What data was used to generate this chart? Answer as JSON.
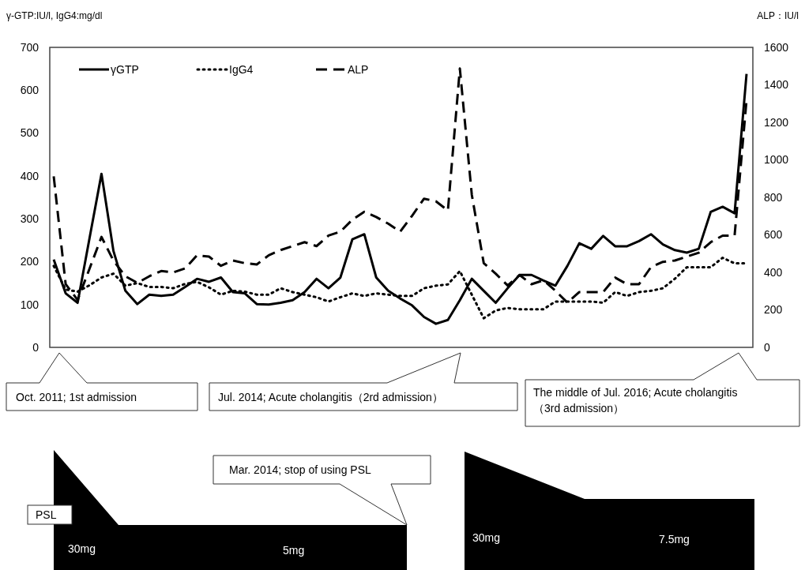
{
  "chart_data": {
    "type": "line",
    "ylabel": "γ-GTP:IU/l, IgG4:mg/dl",
    "y2label": "ALP：IU/l",
    "categories": [
      null,
      null,
      null,
      null,
      null,
      null,
      null,
      null,
      null,
      null,
      null,
      null,
      null,
      null,
      null,
      null,
      null,
      null,
      null,
      null,
      null,
      null,
      null,
      null,
      null,
      null,
      null,
      null,
      null,
      null,
      null,
      null,
      null,
      null,
      null,
      null,
      null,
      null,
      null,
      null,
      null,
      null,
      null,
      null,
      null,
      null,
      null,
      null,
      null,
      null,
      null,
      null,
      null,
      null,
      null,
      null,
      null,
      null,
      null
    ],
    "series": [
      {
        "name": "γGTP",
        "color": "#000000",
        "line_style": "solid",
        "values": [
          205,
          126,
          104,
          255,
          405,
          225,
          132,
          101,
          123,
          120,
          123,
          141,
          160,
          153,
          163,
          129,
          126,
          101,
          100,
          104,
          110,
          129,
          160,
          138,
          163,
          252,
          264,
          163,
          132,
          114,
          98,
          71,
          55,
          64,
          110,
          160,
          132,
          104,
          138,
          169,
          169,
          156,
          144,
          190,
          243,
          230,
          260,
          236,
          236,
          248,
          264,
          240,
          227,
          221,
          230,
          316,
          328,
          313,
          638
        ]
      },
      {
        "name": "IgG4",
        "color": "#000000",
        "line_style": "dotted",
        "values": [
          190,
          135,
          130,
          145,
          163,
          172,
          144,
          150,
          141,
          141,
          138,
          148,
          153,
          140,
          123,
          132,
          130,
          123,
          123,
          138,
          129,
          123,
          117,
          107,
          117,
          126,
          120,
          126,
          123,
          120,
          120,
          138,
          144,
          147,
          178,
          123,
          68,
          86,
          92,
          89,
          89,
          89,
          107,
          107,
          107,
          107,
          104,
          129,
          120,
          129,
          132,
          138,
          160,
          187,
          187,
          187,
          209,
          196,
          196
        ]
      },
      {
        "name": "ALP",
        "color": "#000000",
        "line_style": "dashed",
        "axis": "y2",
        "values": [
          912,
          337,
          253,
          420,
          589,
          463,
          379,
          344,
          379,
          407,
          400,
          421,
          491,
          484,
          435,
          463,
          449,
          442,
          491,
          519,
          540,
          561,
          540,
          596,
          617,
          681,
          723,
          695,
          660,
          617,
          702,
          793,
          779,
          730,
          1487,
          814,
          449,
          393,
          330,
          386,
          337,
          358,
          302,
          239,
          295,
          295,
          295,
          372,
          337,
          337,
          428,
          456,
          463,
          484,
          505,
          561,
          596,
          596,
          1319
        ]
      }
    ],
    "ylim": [
      0,
      700
    ],
    "yticks": [
      0,
      100,
      200,
      300,
      400,
      500,
      600,
      700
    ],
    "y2lim": [
      0,
      1600
    ],
    "y2ticks": [
      0,
      200,
      400,
      600,
      800,
      1000,
      1200,
      1400,
      1600
    ],
    "grid": false,
    "legend": "top left",
    "annotations": [
      "Oct. 2011; 1st admission",
      "Jul. 2014; Acute cholangitis（2rd admission）",
      "The middle of Jul. 2016; Acute cholangitis（3rd admission）",
      "Mar. 2014; stop of using PSL",
      "PSL",
      "30mg",
      "5mg",
      "30mg",
      "7.5mg"
    ]
  }
}
